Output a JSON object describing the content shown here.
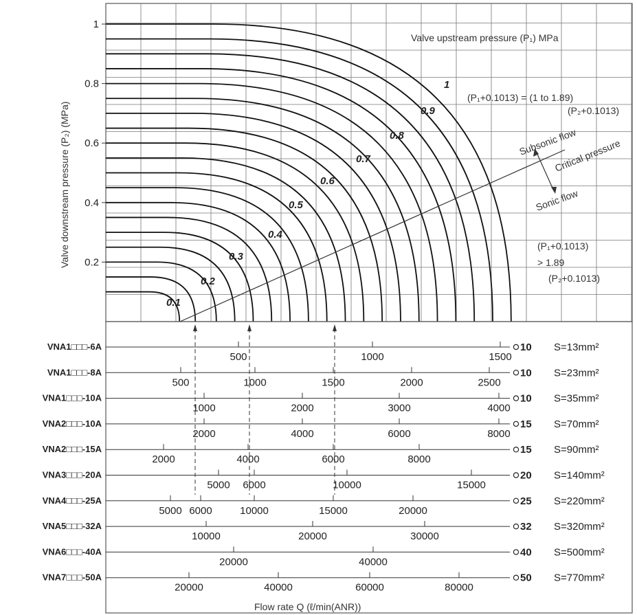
{
  "chart_data": {
    "type": "line",
    "title": "",
    "ylabel": "Valve downstream pressure (P₂) (MPa)",
    "xlabel": "Flow rate  Q  (ℓ/min(ANR))",
    "ylim": [
      0,
      1
    ],
    "yticks": [
      "1",
      "0.8",
      "0.6",
      "0.4",
      "0.2"
    ],
    "grid": true,
    "series_header": "Valve upstream pressure (P₁) MPa",
    "curve_labels": [
      "0.1",
      "0.2",
      "0.3",
      "0.4",
      "0.5",
      "0.6",
      "0.7",
      "0.8",
      "0.9",
      "1"
    ],
    "curves": [
      {
        "p1": 0.1,
        "p2_start": 0.1,
        "q": 0.14
      },
      {
        "p1": 0.15,
        "p2_start": 0.15,
        "q": 0.17
      },
      {
        "p1": 0.2,
        "p2_start": 0.2,
        "q": 0.21
      },
      {
        "p1": 0.25,
        "p2_start": 0.25,
        "q": 0.245
      },
      {
        "p1": 0.3,
        "p2_start": 0.3,
        "q": 0.28
      },
      {
        "p1": 0.35,
        "p2_start": 0.35,
        "q": 0.315
      },
      {
        "p1": 0.4,
        "p2_start": 0.4,
        "q": 0.35
      },
      {
        "p1": 0.45,
        "p2_start": 0.45,
        "q": 0.385
      },
      {
        "p1": 0.5,
        "p2_start": 0.5,
        "q": 0.42
      },
      {
        "p1": 0.55,
        "p2_start": 0.55,
        "q": 0.455
      },
      {
        "p1": 0.6,
        "p2_start": 0.6,
        "q": 0.49
      },
      {
        "p1": 0.65,
        "p2_start": 0.65,
        "q": 0.525
      },
      {
        "p1": 0.7,
        "p2_start": 0.7,
        "q": 0.56
      },
      {
        "p1": 0.75,
        "p2_start": 0.75,
        "q": 0.595
      },
      {
        "p1": 0.8,
        "p2_start": 0.8,
        "q": 0.63
      },
      {
        "p1": 0.85,
        "p2_start": 0.85,
        "q": 0.665
      },
      {
        "p1": 0.9,
        "p2_start": 0.9,
        "q": 0.7
      },
      {
        "p1": 0.95,
        "p2_start": 0.95,
        "q": 0.735
      },
      {
        "p1": 1.0,
        "p2_start": 1.0,
        "q": 0.77
      }
    ],
    "annotations": {
      "subsonic_ratio": "(P₁+0.1013) = (1 to 1.89)",
      "subsonic_denominator": "(P₂+0.1013)",
      "subsonic": "Subsonic flow",
      "critical": "Critical pressure",
      "sonic": "Sonic flow",
      "sonic_ratio": "(P₁+0.1013)",
      "sonic_gt": "> 1.89",
      "sonic_denominator": "(P₂+0.1013)"
    },
    "scales": [
      {
        "model": "VNA1□□□-6A",
        "dia": "10",
        "area": "S=13mm²",
        "ticks": [
          {
            "v": "500",
            "x": 347
          },
          {
            "v": "1000",
            "x": 542
          },
          {
            "v": "1500",
            "x": 728
          }
        ]
      },
      {
        "model": "VNA1□□□-8A",
        "dia": "10",
        "area": "S=23mm²",
        "ticks": [
          {
            "v": "500",
            "x": 263
          },
          {
            "v": "1000",
            "x": 371
          },
          {
            "v": "1500",
            "x": 485
          },
          {
            "v": "2000",
            "x": 599
          },
          {
            "v": "2500",
            "x": 712
          }
        ]
      },
      {
        "model": "VNA1□□□-10A",
        "dia": "10",
        "area": "S=35mm²",
        "ticks": [
          {
            "v": "1000",
            "x": 297
          },
          {
            "v": "2000",
            "x": 440
          },
          {
            "v": "3000",
            "x": 581
          },
          {
            "v": "4000",
            "x": 726
          }
        ]
      },
      {
        "model": "VNA2□□□-10A",
        "dia": "15",
        "area": "S=70mm²",
        "ticks": [
          {
            "v": "2000",
            "x": 297
          },
          {
            "v": "4000",
            "x": 440
          },
          {
            "v": "6000",
            "x": 581
          },
          {
            "v": "8000",
            "x": 726
          }
        ]
      },
      {
        "model": "VNA2□□□-15A",
        "dia": "15",
        "area": "S=90mm²",
        "ticks": [
          {
            "v": "2000",
            "x": 238
          },
          {
            "v": "4000",
            "x": 361
          },
          {
            "v": "6000",
            "x": 485
          },
          {
            "v": "8000",
            "x": 610
          }
        ]
      },
      {
        "model": "VNA3□□□-20A",
        "dia": "20",
        "area": "S=140mm²",
        "ticks": [
          {
            "v": "5000",
            "x": 318
          },
          {
            "v": "6000",
            "x": 370
          },
          {
            "v": "10000",
            "x": 505
          },
          {
            "v": "15000",
            "x": 686
          }
        ]
      },
      {
        "model": "VNA4□□□-25A",
        "dia": "25",
        "area": "S=220mm²",
        "ticks": [
          {
            "v": "5000",
            "x": 248
          },
          {
            "v": "6000",
            "x": 292
          },
          {
            "v": "10000",
            "x": 370
          },
          {
            "v": "15000",
            "x": 485
          },
          {
            "v": "20000",
            "x": 601
          }
        ]
      },
      {
        "model": "VNA5□□□-32A",
        "dia": "32",
        "area": "S=320mm²",
        "ticks": [
          {
            "v": "10000",
            "x": 300
          },
          {
            "v": "20000",
            "x": 455
          },
          {
            "v": "30000",
            "x": 618
          }
        ]
      },
      {
        "model": "VNA6□□□-40A",
        "dia": "40",
        "area": "S=500mm²",
        "ticks": [
          {
            "v": "20000",
            "x": 340
          },
          {
            "v": "40000",
            "x": 543
          }
        ]
      },
      {
        "model": "VNA7□□□-50A",
        "dia": "50",
        "area": "S=770mm²",
        "ticks": [
          {
            "v": "20000",
            "x": 275
          },
          {
            "v": "40000",
            "x": 405
          },
          {
            "v": "60000",
            "x": 538
          },
          {
            "v": "80000",
            "x": 668
          }
        ]
      }
    ]
  }
}
